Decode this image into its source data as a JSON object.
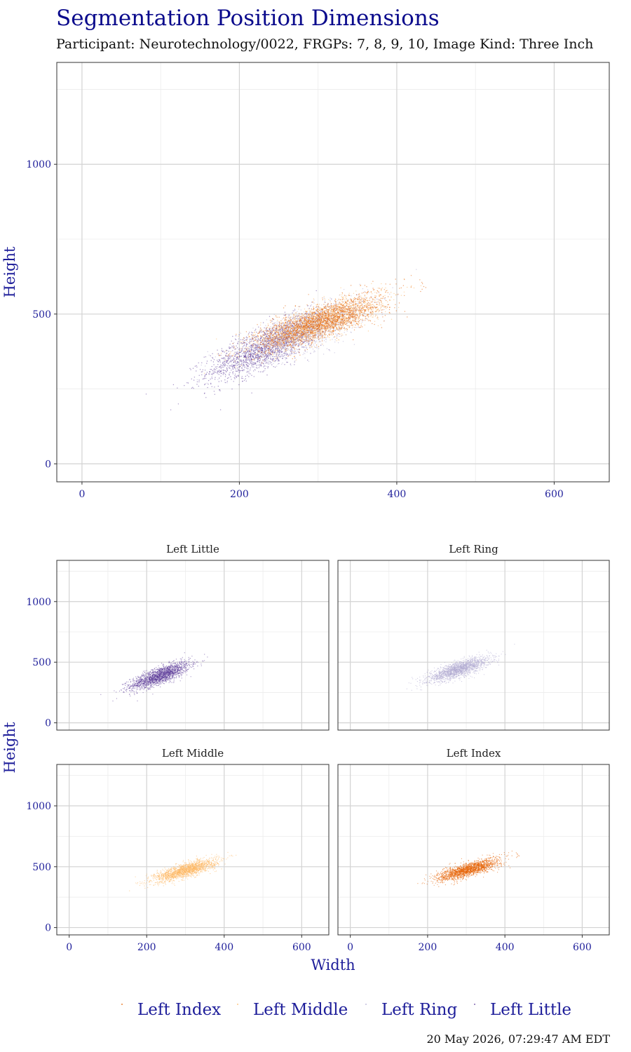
{
  "title": "Segmentation Position Dimensions",
  "subtitle": "Participant: Neurotechnology/0022, FRGPs: 7, 8, 9, 10, Image Kind: Three Inch",
  "timestamp": "20 May 2026, 07:29:47 AM EDT",
  "colors": {
    "Left Index": "#e66101",
    "Left Middle": "#fdb863",
    "Left Ring": "#b2abd2",
    "Left Little": "#5e3c99"
  },
  "chart_data": [
    {
      "type": "scatter",
      "panel": "combined",
      "xlabel": "",
      "ylabel": "Height",
      "xlim": [
        -32,
        670
      ],
      "ylim": [
        -60,
        1340
      ],
      "xticks": [
        0,
        200,
        400,
        600
      ],
      "yticks": [
        0,
        500,
        1000
      ],
      "grid": true,
      "series": [
        {
          "name": "Left Little",
          "center": [
            235,
            390
          ],
          "spread": [
            38,
            55
          ],
          "n": 1800
        },
        {
          "name": "Left Ring",
          "center": [
            280,
            440
          ],
          "spread": [
            40,
            50
          ],
          "n": 1800
        },
        {
          "name": "Left Middle",
          "center": [
            300,
            470
          ],
          "spread": [
            40,
            45
          ],
          "n": 1800
        },
        {
          "name": "Left Index",
          "center": [
            305,
            475
          ],
          "spread": [
            40,
            45
          ],
          "n": 1800
        }
      ]
    },
    {
      "type": "scatter",
      "panel": "faceted",
      "xlabel": "Width",
      "ylabel": "Height",
      "xlim": [
        -32,
        670
      ],
      "ylim": [
        -60,
        1340
      ],
      "xticks": [
        0,
        200,
        400,
        600
      ],
      "yticks": [
        0,
        500,
        1000
      ],
      "grid": true,
      "facets": [
        "Left Little",
        "Left Ring",
        "Left Middle",
        "Left Index"
      ]
    }
  ],
  "legend": {
    "position": "bottom",
    "entries": [
      "Left Index",
      "Left Middle",
      "Left Ring",
      "Left Little"
    ]
  }
}
